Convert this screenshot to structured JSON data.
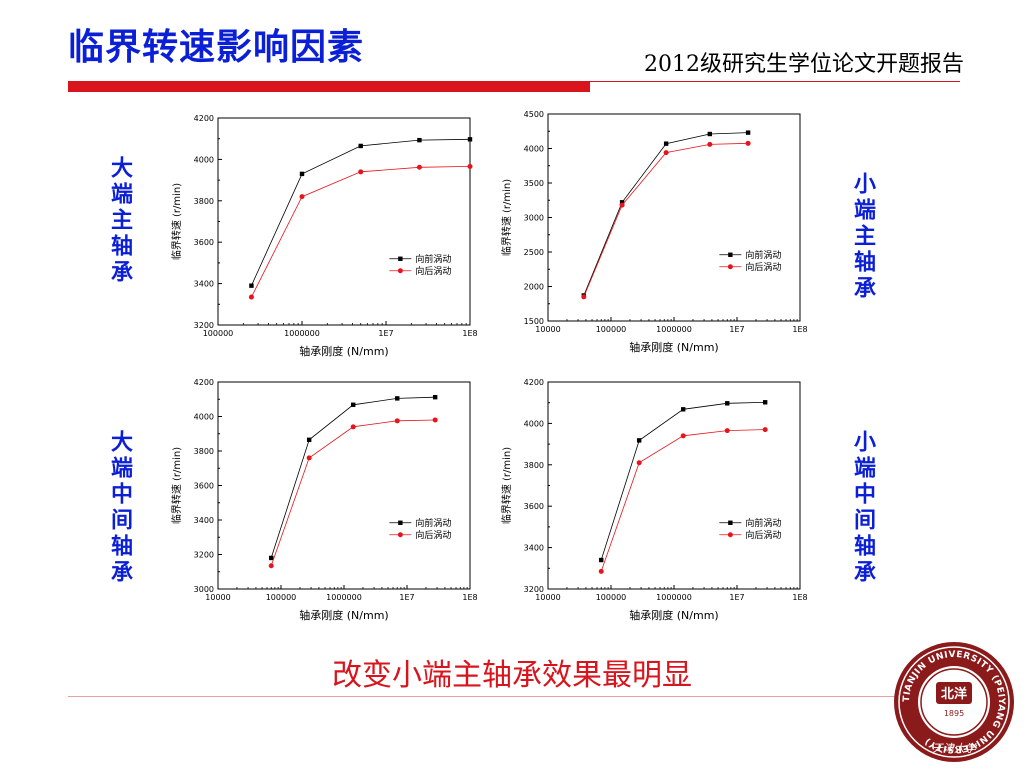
{
  "header": {
    "title": "临界转速影响因素",
    "subtitle": "2012级研究生学位论文开题报告"
  },
  "side_labels": {
    "top_left": "大端主轴承",
    "top_right": "小端主轴承",
    "bottom_left": "大端中间轴承",
    "bottom_right": "小端中间轴承"
  },
  "conclusion": "改变小端主轴承效果最明显",
  "logo": {
    "ring_text": "TIANJIN UNIVERSITY (PEIYANG UNIVERSITY)",
    "center_text": "北洋",
    "year": "1895",
    "bottom_text": "天津大学"
  },
  "colors": {
    "series_front": "#000000",
    "series_back": "#e8141c",
    "title_blue": "#0b1fd6",
    "accent_red": "#d8141c"
  },
  "chart_data": [
    {
      "type": "line",
      "x_scale": "log",
      "xlabel": "轴承刚度 (N/mm)",
      "ylabel": "临界转速 (r/min)",
      "xlim": [
        100000,
        100000000
      ],
      "ylim": [
        3200,
        4200
      ],
      "xticks": [
        100000,
        1000000,
        10000000,
        100000000
      ],
      "xtick_labels": [
        "100000",
        "1000000",
        "1E7",
        "1E8"
      ],
      "yticks": [
        3200,
        3400,
        3600,
        3800,
        4000,
        4200
      ],
      "legend_position": "center-right",
      "series": [
        {
          "name": "向前涡动",
          "x": [
            250000,
            1000000,
            5000000,
            25000000,
            100000000
          ],
          "y": [
            3390,
            3930,
            4065,
            4093,
            4097
          ]
        },
        {
          "name": "向后涡动",
          "x": [
            250000,
            1000000,
            5000000,
            25000000,
            100000000
          ],
          "y": [
            3335,
            3820,
            3940,
            3962,
            3966
          ]
        }
      ]
    },
    {
      "type": "line",
      "x_scale": "log",
      "xlabel": "轴承刚度 (N/mm)",
      "ylabel": "临界转速 (r/min)",
      "xlim": [
        10000,
        100000000
      ],
      "ylim": [
        1500,
        4500
      ],
      "xticks": [
        10000,
        100000,
        1000000,
        10000000,
        100000000
      ],
      "xtick_labels": [
        "10000",
        "100000",
        "1000000",
        "1E7",
        "1E8"
      ],
      "yticks": [
        1500,
        2000,
        2500,
        3000,
        3500,
        4000,
        4500
      ],
      "legend_position": "center-right",
      "series": [
        {
          "name": "向前涡动",
          "x": [
            37000,
            150000,
            750000,
            3700000,
            15000000
          ],
          "y": [
            1870,
            3220,
            4070,
            4210,
            4230
          ]
        },
        {
          "name": "向后涡动",
          "x": [
            37000,
            150000,
            750000,
            3700000,
            15000000
          ],
          "y": [
            1850,
            3180,
            3940,
            4060,
            4075
          ]
        }
      ]
    },
    {
      "type": "line",
      "x_scale": "log",
      "xlabel": "轴承刚度 (N/mm)",
      "ylabel": "临界转速 (r/min)",
      "xlim": [
        10000,
        100000000
      ],
      "ylim": [
        3000,
        4200
      ],
      "xticks": [
        10000,
        100000,
        1000000,
        10000000,
        100000000
      ],
      "xtick_labels": [
        "10000",
        "100000",
        "1000000",
        "1E7",
        "1E8"
      ],
      "yticks": [
        3000,
        3200,
        3400,
        3600,
        3800,
        4000,
        4200
      ],
      "legend_position": "center-right",
      "series": [
        {
          "name": "向前涡动",
          "x": [
            70000,
            280000,
            1400000,
            7000000,
            28000000
          ],
          "y": [
            3180,
            3865,
            4068,
            4105,
            4112
          ]
        },
        {
          "name": "向后涡动",
          "x": [
            70000,
            280000,
            1400000,
            7000000,
            28000000
          ],
          "y": [
            3135,
            3760,
            3940,
            3975,
            3980
          ]
        }
      ]
    },
    {
      "type": "line",
      "x_scale": "log",
      "xlabel": "轴承刚度 (N/mm)",
      "ylabel": "临界转速 (r/min)",
      "xlim": [
        10000,
        100000000
      ],
      "ylim": [
        3200,
        4200
      ],
      "xticks": [
        10000,
        100000,
        1000000,
        10000000,
        100000000
      ],
      "xtick_labels": [
        "10000",
        "100000",
        "1000000",
        "1E7",
        "1E8"
      ],
      "yticks": [
        3200,
        3400,
        3600,
        3800,
        4000,
        4200
      ],
      "legend_position": "center-right",
      "series": [
        {
          "name": "向前涡动",
          "x": [
            70000,
            280000,
            1400000,
            7000000,
            28000000
          ],
          "y": [
            3340,
            3918,
            4068,
            4097,
            4102
          ]
        },
        {
          "name": "向后涡动",
          "x": [
            70000,
            280000,
            1400000,
            7000000,
            28000000
          ],
          "y": [
            3285,
            3810,
            3940,
            3965,
            3970
          ]
        }
      ]
    }
  ]
}
